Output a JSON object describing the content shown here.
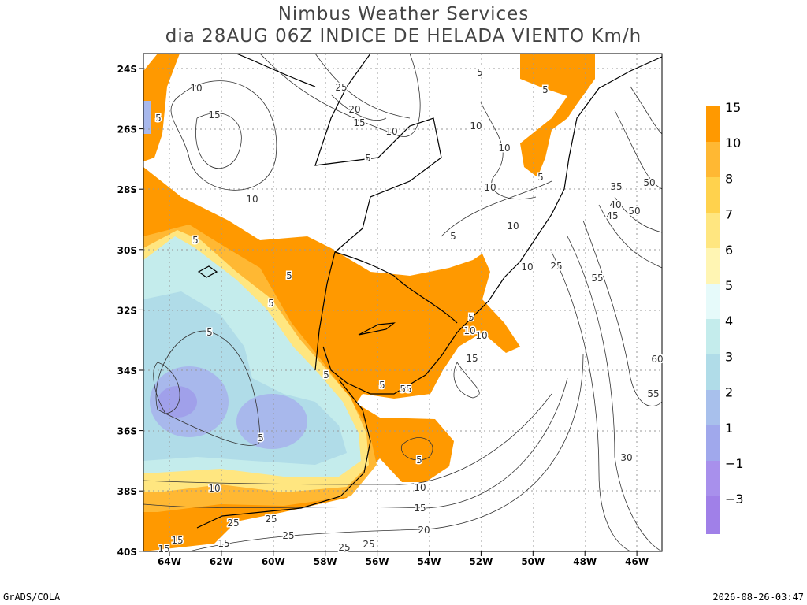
{
  "header": {
    "title": "Nimbus Weather Services",
    "subtitle": "dia 28AUG 06Z INDICE DE HELADA VIENTO Km/h"
  },
  "map": {
    "lat_labels": [
      "24S",
      "26S",
      "28S",
      "30S",
      "32S",
      "34S",
      "36S",
      "38S",
      "40S"
    ],
    "lon_labels": [
      "64W",
      "62W",
      "60W",
      "58W",
      "56W",
      "54W",
      "52W",
      "50W",
      "48W",
      "46W"
    ],
    "contour_labels": [
      "10",
      "15",
      "10",
      "25",
      "20",
      "15",
      "10",
      "5",
      "5",
      "10",
      "10",
      "10",
      "10",
      "5",
      "5",
      "5",
      "35",
      "50",
      "40",
      "45",
      "50",
      "25",
      "10",
      "55",
      "60",
      "55",
      "30",
      "5",
      "5",
      "5",
      "5",
      "10",
      "10",
      "15",
      "5",
      "5",
      "5",
      "55",
      "5",
      "5",
      "10",
      "10",
      "15",
      "20",
      "25",
      "25",
      "15",
      "15",
      "25",
      "25",
      "25",
      "15",
      "5"
    ]
  },
  "colorbar": {
    "labels": [
      "15",
      "10",
      "8",
      "7",
      "6",
      "5",
      "4",
      "3",
      "2",
      "1",
      "−1",
      "−3"
    ]
  },
  "footer": {
    "left": "GrADS/COLA",
    "right": "2026-08-26-03:47"
  }
}
